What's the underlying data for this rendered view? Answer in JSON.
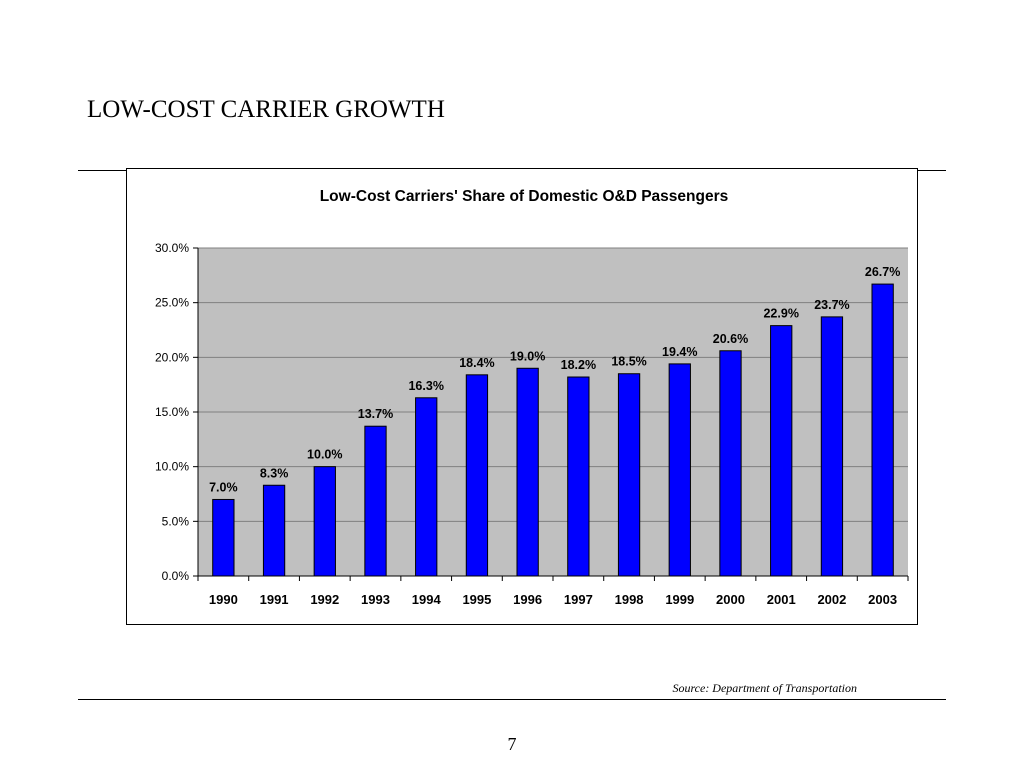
{
  "slide": {
    "title": "LOW-COST CARRIER GROWTH",
    "source": "Source:  Department of Transportation",
    "page_number": "7"
  },
  "colors": {
    "bar_fill": "#0000ff",
    "bar_stroke": "#000000",
    "plot_background": "#c0c0c0",
    "gridline": "#808080"
  },
  "chart_data": {
    "type": "bar",
    "title": "Low-Cost Carriers' Share of Domestic O&D Passengers",
    "xlabel": "",
    "ylabel": "",
    "categories": [
      "1990",
      "1991",
      "1992",
      "1993",
      "1994",
      "1995",
      "1996",
      "1997",
      "1998",
      "1999",
      "2000",
      "2001",
      "2002",
      "2003"
    ],
    "values": [
      7.0,
      8.3,
      10.0,
      13.7,
      16.3,
      18.4,
      19.0,
      18.2,
      18.5,
      19.4,
      20.6,
      22.9,
      23.7,
      26.7
    ],
    "value_labels": [
      "7.0%",
      "8.3%",
      "10.0%",
      "13.7%",
      "16.3%",
      "18.4%",
      "19.0%",
      "18.2%",
      "18.5%",
      "19.4%",
      "20.6%",
      "22.9%",
      "23.7%",
      "26.7%"
    ],
    "ylim": [
      0,
      30
    ],
    "yticks": [
      0,
      5,
      10,
      15,
      20,
      25,
      30
    ],
    "ytick_labels": [
      "0.0%",
      "5.0%",
      "10.0%",
      "15.0%",
      "20.0%",
      "25.0%",
      "30.0%"
    ],
    "grid": true,
    "legend": "none"
  }
}
